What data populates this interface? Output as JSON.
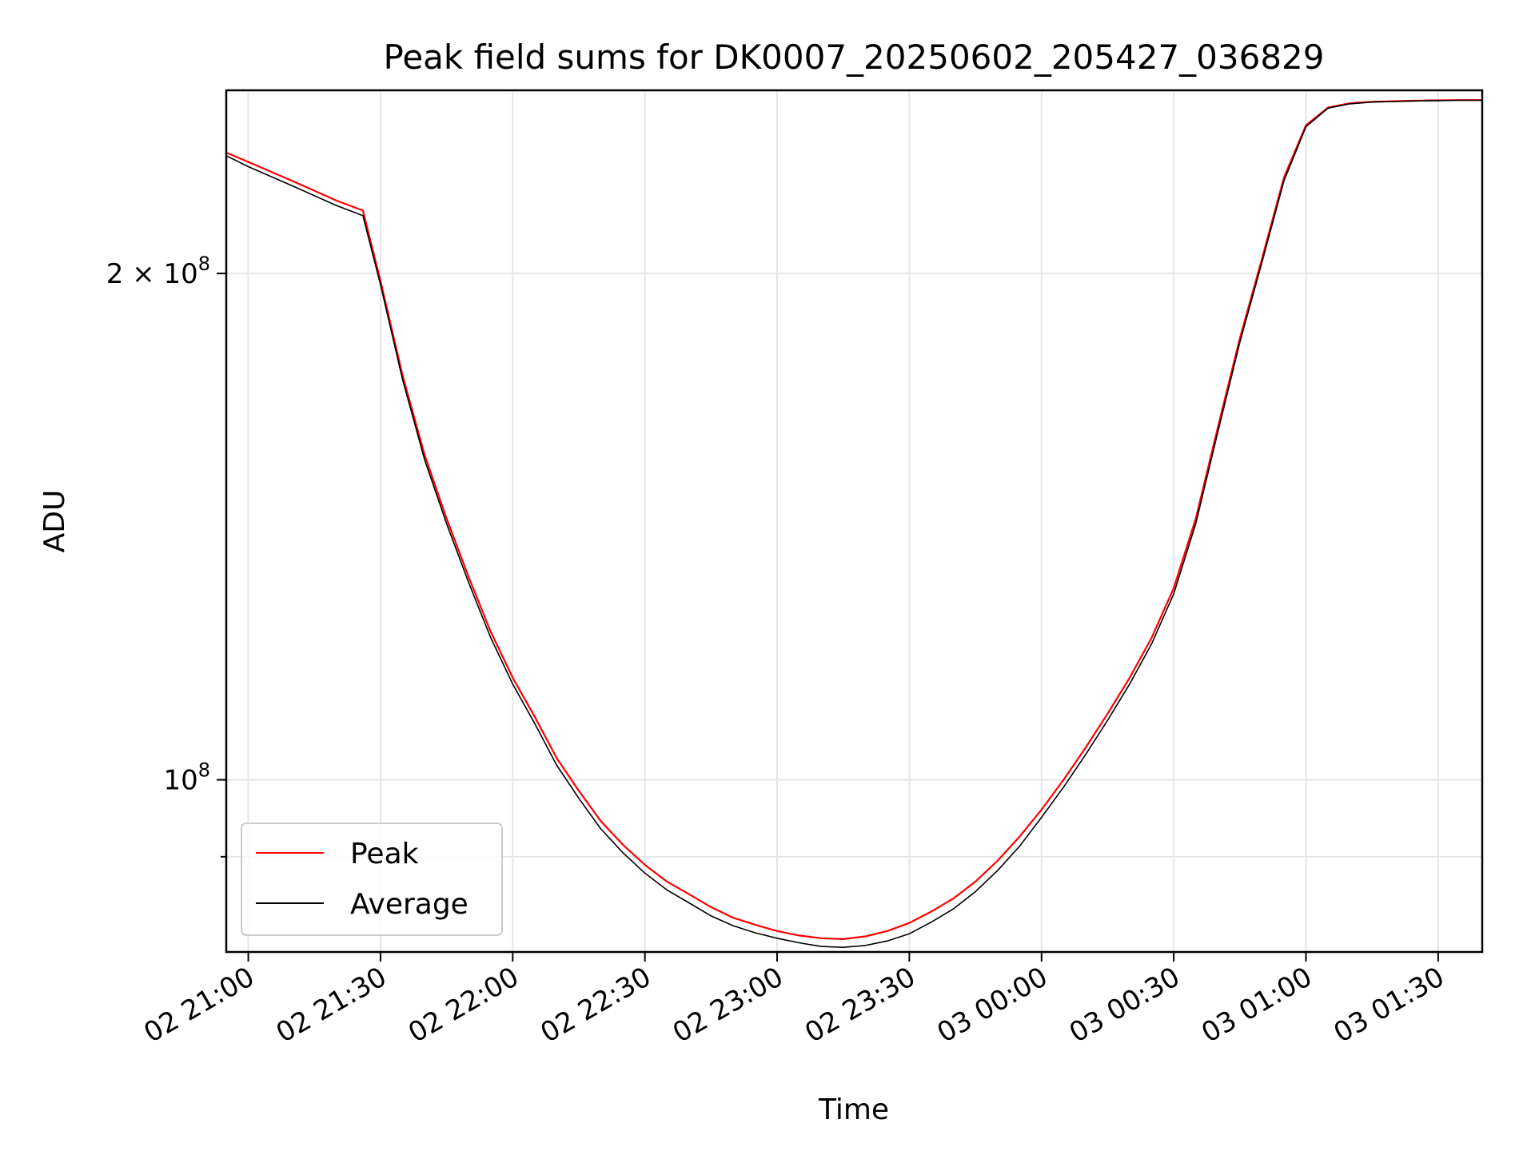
{
  "chart_data": {
    "type": "line",
    "title": "Peak field sums for DK0007_20250602_205427_036829",
    "xlabel": "Time",
    "ylabel": "ADU",
    "x_unit": "minutes",
    "xlim": [
      -5,
      280
    ],
    "y_scale": "log",
    "ylim": [
      79000000,
      257000000
    ],
    "x_ticks": [
      {
        "value": 0,
        "label": "02 21:00"
      },
      {
        "value": 30,
        "label": "02 21:30"
      },
      {
        "value": 60,
        "label": "02 22:00"
      },
      {
        "value": 90,
        "label": "02 22:30"
      },
      {
        "value": 120,
        "label": "02 23:00"
      },
      {
        "value": 150,
        "label": "02 23:30"
      },
      {
        "value": 180,
        "label": "03 00:00"
      },
      {
        "value": 210,
        "label": "03 00:30"
      },
      {
        "value": 240,
        "label": "03 01:00"
      },
      {
        "value": 270,
        "label": "03 01:30"
      }
    ],
    "y_ticks_major": [
      {
        "value": 100000000,
        "label_base": "10",
        "label_exp": "8",
        "label_coef": ""
      },
      {
        "value": 200000000,
        "label_base": "10",
        "label_exp": "8",
        "label_coef": "2 × "
      }
    ],
    "y_ticks_minor": [
      90000000
    ],
    "grid": true,
    "legend_position": "lower-left",
    "series": [
      {
        "name": "Peak",
        "color": "#ff0000",
        "x": [
          -5,
          0,
          10,
          20,
          26,
          30,
          35,
          40,
          45,
          50,
          55,
          60,
          65,
          70,
          75,
          80,
          85,
          90,
          95,
          100,
          105,
          110,
          115,
          120,
          125,
          130,
          135,
          140,
          145,
          150,
          155,
          160,
          165,
          170,
          175,
          180,
          185,
          190,
          195,
          200,
          205,
          210,
          215,
          220,
          225,
          230,
          235,
          240,
          245,
          250,
          255,
          260,
          265,
          270,
          275,
          280
        ],
        "y": [
          236000000,
          233000000,
          227000000,
          221000000,
          218000000,
          198000000,
          174000000,
          156000000,
          143000000,
          132000000,
          122500000,
          115000000,
          109000000,
          103000000,
          98500000,
          94500000,
          91500000,
          89000000,
          87000000,
          85500000,
          84000000,
          82800000,
          82000000,
          81300000,
          80800000,
          80500000,
          80400000,
          80700000,
          81300000,
          82200000,
          83500000,
          85000000,
          87000000,
          89500000,
          92500000,
          96000000,
          100000000,
          104500000,
          109500000,
          115000000,
          121500000,
          130000000,
          143000000,
          162000000,
          183000000,
          204000000,
          228000000,
          245000000,
          251000000,
          252500000,
          253000000,
          253200000,
          253400000,
          253500000,
          253600000,
          253600000
        ]
      },
      {
        "name": "Average",
        "color": "#000000",
        "x": [
          -5,
          0,
          10,
          20,
          26,
          30,
          35,
          40,
          45,
          50,
          55,
          60,
          65,
          70,
          75,
          80,
          85,
          90,
          95,
          100,
          105,
          110,
          115,
          120,
          125,
          130,
          135,
          140,
          145,
          150,
          155,
          160,
          165,
          170,
          175,
          180,
          185,
          190,
          195,
          200,
          205,
          210,
          215,
          220,
          225,
          230,
          235,
          240,
          245,
          250,
          255,
          260,
          265,
          270,
          275,
          280
        ],
        "y": [
          235000000,
          231500000,
          225500000,
          219500000,
          216500000,
          197000000,
          173000000,
          155000000,
          142000000,
          131000000,
          121500000,
          114000000,
          108000000,
          102000000,
          97500000,
          93500000,
          90500000,
          88000000,
          86000000,
          84500000,
          83000000,
          81900000,
          81100000,
          80500000,
          80000000,
          79600000,
          79500000,
          79700000,
          80200000,
          81000000,
          82300000,
          83800000,
          85800000,
          88300000,
          91300000,
          95000000,
          99000000,
          103500000,
          108500000,
          114000000,
          120500000,
          129000000,
          142000000,
          161000000,
          182000000,
          203000000,
          227000000,
          244500000,
          250800000,
          252300000,
          252900000,
          253100000,
          253300000,
          253400000,
          253500000,
          253500000
        ]
      }
    ]
  }
}
